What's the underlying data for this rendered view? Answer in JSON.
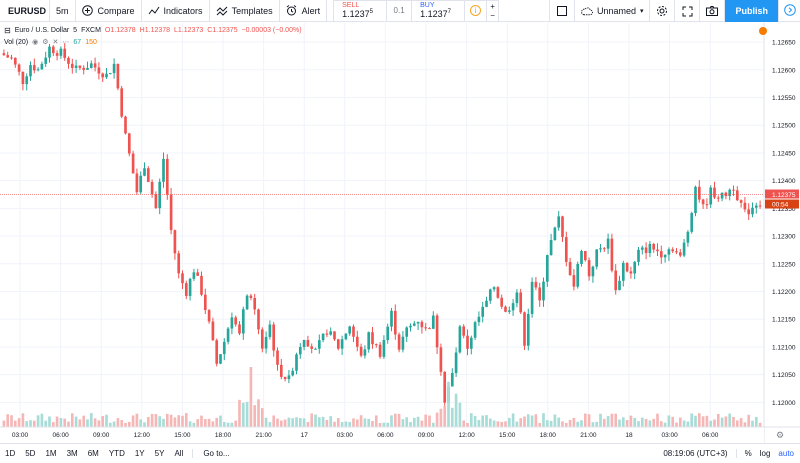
{
  "toolbar": {
    "symbol": "EURUSD",
    "interval": "5m",
    "compare": "Compare",
    "indicators": "Indicators",
    "templates": "Templates",
    "alert": "Alert",
    "sell_label": "SELL",
    "sell_price": "1.1237",
    "sell_sup": "5",
    "spread": "0.1",
    "buy_label": "BUY",
    "buy_price": "1.1237",
    "buy_sup": "7",
    "plus": "+",
    "minus": "−",
    "layout_name": "Unnamed",
    "publish": "Publish"
  },
  "legend": {
    "title": "Euro / U.S. Dollar",
    "interval": "5",
    "source": "FXCM",
    "o": "O1.12378",
    "h": "H1.12378",
    "l": "L1.12373",
    "c": "C1.12375",
    "chg": "−0.00003 (−0.00%)",
    "vol_label": "Vol (20)",
    "vol_val1": "67",
    "vol_val2": "150"
  },
  "price_axis": {
    "ticks": [
      "1.12650",
      "1.12600",
      "1.12550",
      "1.12500",
      "1.12450",
      "1.12400",
      "1.12350",
      "1.12300",
      "1.12250",
      "1.12200",
      "1.12150",
      "1.12100",
      "1.12050",
      "1.12000"
    ],
    "current_price": "1.12375",
    "countdown": "00:54"
  },
  "time_axis": {
    "ticks": [
      "03:00",
      "06:00",
      "09:00",
      "12:00",
      "15:00",
      "18:00",
      "21:00",
      "17",
      "03:00",
      "06:00",
      "09:00",
      "12:00",
      "15:00",
      "18:00",
      "21:00",
      "18",
      "03:00",
      "06:00"
    ]
  },
  "bottom": {
    "ranges": [
      "1D",
      "5D",
      "1M",
      "3M",
      "6M",
      "YTD",
      "1Y",
      "5Y",
      "All"
    ],
    "goto": "Go to...",
    "time": "08:19:06 (UTC+3)",
    "percent": "%",
    "log": "log",
    "auto": "auto"
  },
  "chart_data": {
    "type": "candlestick",
    "symbol": "Euro / U.S. Dollar",
    "ylim": [
      1.1197,
      1.1267
    ],
    "path": [
      [
        0,
        1.1263
      ],
      [
        3,
        1.1262
      ],
      [
        6,
        1.1258
      ],
      [
        8,
        1.1261
      ],
      [
        10,
        1.126
      ],
      [
        13,
        1.1264
      ],
      [
        16,
        1.1263
      ],
      [
        20,
        1.126
      ],
      [
        24,
        1.1261
      ],
      [
        28,
        1.1259
      ],
      [
        30,
        1.1261
      ],
      [
        33,
        1.1248
      ],
      [
        36,
        1.1238
      ],
      [
        38,
        1.1243
      ],
      [
        41,
        1.1235
      ],
      [
        43,
        1.1244
      ],
      [
        45,
        1.1231
      ],
      [
        47,
        1.1223
      ],
      [
        49,
        1.122
      ],
      [
        51,
        1.1224
      ],
      [
        53,
        1.122
      ],
      [
        55,
        1.1214
      ],
      [
        57,
        1.1207
      ],
      [
        59,
        1.1211
      ],
      [
        61,
        1.1216
      ],
      [
        63,
        1.1212
      ],
      [
        65,
        1.122
      ],
      [
        67,
        1.1216
      ],
      [
        69,
        1.121
      ],
      [
        71,
        1.1214
      ],
      [
        73,
        1.1206
      ],
      [
        76,
        1.1204
      ],
      [
        78,
        1.1209
      ],
      [
        80,
        1.1212
      ],
      [
        83,
        1.1209
      ],
      [
        86,
        1.1213
      ],
      [
        89,
        1.121
      ],
      [
        92,
        1.1214
      ],
      [
        95,
        1.1208
      ],
      [
        97,
        1.1212
      ],
      [
        100,
        1.1209
      ],
      [
        103,
        1.1216
      ],
      [
        105,
        1.121
      ],
      [
        107,
        1.1213
      ],
      [
        110,
        1.1215
      ],
      [
        112,
        1.1213
      ],
      [
        114,
        1.1215
      ],
      [
        116,
        1.1206
      ],
      [
        117,
        1.12
      ],
      [
        119,
        1.1205
      ],
      [
        121,
        1.1213
      ],
      [
        123,
        1.121
      ],
      [
        125,
        1.1214
      ],
      [
        128,
        1.1218
      ],
      [
        130,
        1.1221
      ],
      [
        133,
        1.1216
      ],
      [
        136,
        1.122
      ],
      [
        138,
        1.1211
      ],
      [
        140,
        1.1222
      ],
      [
        142,
        1.1218
      ],
      [
        144,
        1.1227
      ],
      [
        147,
        1.1233
      ],
      [
        149,
        1.1226
      ],
      [
        151,
        1.1221
      ],
      [
        153,
        1.1228
      ],
      [
        155,
        1.1223
      ],
      [
        157,
        1.1227
      ],
      [
        160,
        1.1229
      ],
      [
        162,
        1.122
      ],
      [
        164,
        1.1225
      ],
      [
        166,
        1.1223
      ],
      [
        168,
        1.1227
      ],
      [
        171,
        1.1228
      ],
      [
        174,
        1.1227
      ],
      [
        177,
        1.1228
      ],
      [
        179,
        1.1226
      ],
      [
        181,
        1.1231
      ],
      [
        183,
        1.1239
      ],
      [
        185,
        1.1235
      ],
      [
        187,
        1.1238
      ],
      [
        190,
        1.1237
      ],
      [
        193,
        1.1239
      ],
      [
        196,
        1.1234
      ],
      [
        199,
        1.1236
      ]
    ],
    "volume_profile": "low except spikes near 15:00 (day 1) and 09:00 (day 2)"
  },
  "colors": {
    "up": "#26a69a",
    "down": "#ef5350",
    "vol_up": "#a8dcd7",
    "vol_down": "#f5b7b6",
    "price_line": "#ef5350",
    "grid": "#f0f3fa",
    "accent": "#2196f3"
  }
}
